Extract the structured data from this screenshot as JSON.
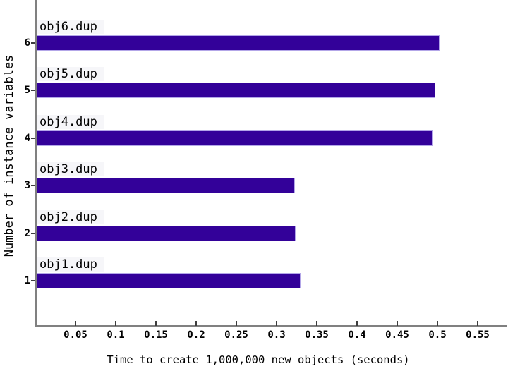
{
  "chart_data": {
    "type": "bar",
    "orientation": "horizontal",
    "title": "",
    "xlabel": "Time to create 1,000,000 new objects (seconds)",
    "ylabel": "Number of instance variables",
    "categories": [
      "1",
      "2",
      "3",
      "4",
      "5",
      "6"
    ],
    "bars": [
      {
        "category": "1",
        "label": "obj1.dup",
        "value": 0.33
      },
      {
        "category": "2",
        "label": "obj2.dup",
        "value": 0.324
      },
      {
        "category": "3",
        "label": "obj3.dup",
        "value": 0.323
      },
      {
        "category": "4",
        "label": "obj4.dup",
        "value": 0.494
      },
      {
        "category": "5",
        "label": "obj5.dup",
        "value": 0.497
      },
      {
        "category": "6",
        "label": "obj6.dup",
        "value": 0.503
      }
    ],
    "xticks": [
      {
        "value": 0.05,
        "label": "0.05"
      },
      {
        "value": 0.1,
        "label": "0.1"
      },
      {
        "value": 0.15,
        "label": "0.15"
      },
      {
        "value": 0.2,
        "label": "0.2"
      },
      {
        "value": 0.25,
        "label": "0.25"
      },
      {
        "value": 0.3,
        "label": "0.3"
      },
      {
        "value": 0.35,
        "label": "0.35"
      },
      {
        "value": 0.4,
        "label": "0.4"
      },
      {
        "value": 0.45,
        "label": "0.45"
      },
      {
        "value": 0.5,
        "label": "0.5"
      },
      {
        "value": 0.55,
        "label": "0.55"
      }
    ],
    "xlim": [
      0,
      0.586
    ],
    "grid": false,
    "legend": "none",
    "colors": {
      "bar_fill": "#330199",
      "bar_border": "#b3a6e8",
      "axis_line": "#808080",
      "tick_mark": "#3d3d3d",
      "bar_label_bg": "#f6f6f9",
      "text": "#000000",
      "background": "#ffffff"
    }
  }
}
